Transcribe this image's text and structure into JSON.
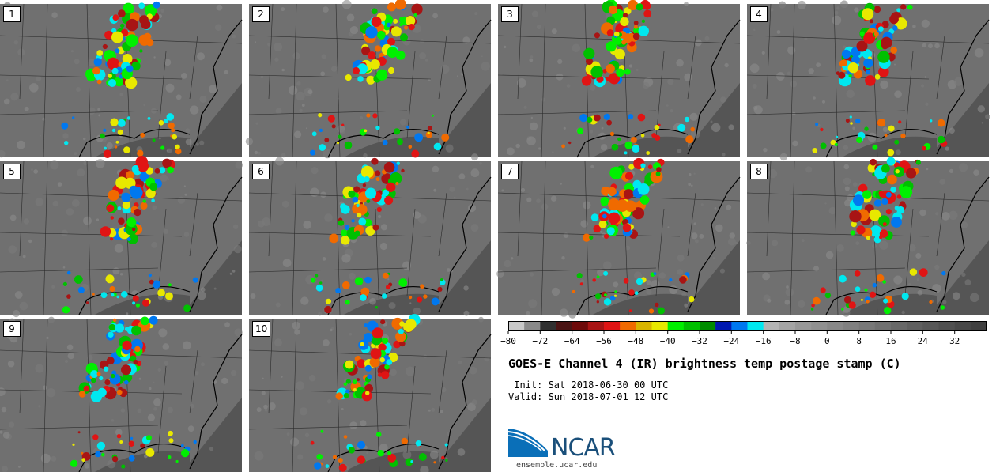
{
  "panels": [
    {
      "label": "1"
    },
    {
      "label": "2"
    },
    {
      "label": "3"
    },
    {
      "label": "4"
    },
    {
      "label": "5"
    },
    {
      "label": "6"
    },
    {
      "label": "7"
    },
    {
      "label": "8"
    },
    {
      "label": "9"
    },
    {
      "label": "10"
    }
  ],
  "colorbar": {
    "min": -80,
    "max": 40,
    "step": 4,
    "tick_labels": [
      "−80",
      "−72",
      "−64",
      "−56",
      "−48",
      "−40",
      "−32",
      "−24",
      "−16",
      "−8",
      "0",
      "8",
      "16",
      "24",
      "32"
    ],
    "tick_values": [
      -80,
      -72,
      -64,
      -56,
      -48,
      -40,
      -32,
      -24,
      -16,
      -8,
      0,
      8,
      16,
      24,
      32
    ],
    "colors": [
      "#c8c8c8",
      "#8a8a8a",
      "#303030",
      "#4a1414",
      "#6e0a0a",
      "#a81414",
      "#e01414",
      "#f06a00",
      "#d8b400",
      "#e8e800",
      "#00f000",
      "#00c000",
      "#008c00",
      "#0018b0",
      "#0078f0",
      "#00e8f0",
      "#b4b4b4",
      "#a4a4a4",
      "#989898",
      "#909090",
      "#888888",
      "#808080",
      "#787878",
      "#707070",
      "#686868",
      "#606060",
      "#585858",
      "#505050",
      "#484848",
      "#404040"
    ]
  },
  "title": "GOES-E Channel 4 (IR) brightness temp postage stamp (C)",
  "init_line": " Init: Sat 2018-06-30 00 UTC",
  "valid_line": "Valid: Sun 2018-07-01 12 UTC",
  "logo_text": "NCAR",
  "url": "ensemble.ucar.edu"
}
